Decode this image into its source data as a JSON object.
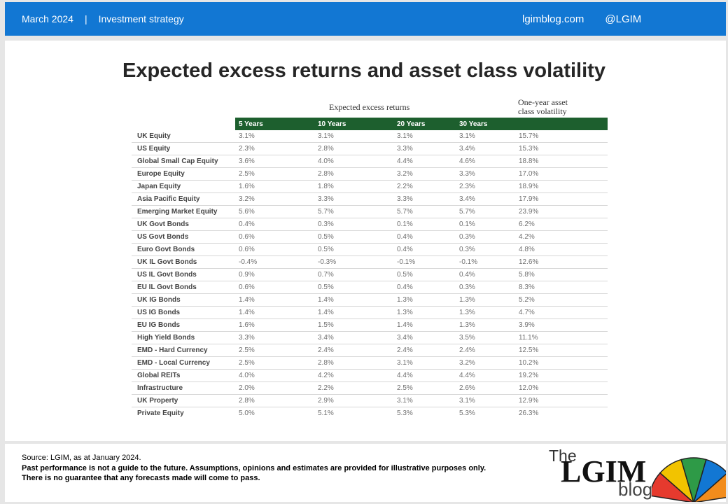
{
  "header": {
    "date": "March 2024",
    "separator": "|",
    "category": "Investment strategy",
    "site": "lgimblog.com",
    "handle": "@LGIM"
  },
  "title": "Expected excess returns and asset class volatility",
  "table": {
    "group_label": "Expected excess returns",
    "volatility_label_1": "One-year asset",
    "volatility_label_2": "class volatility",
    "columns": [
      "5 Years",
      "10 Years",
      "20 Years",
      "30 Years"
    ],
    "rows": [
      {
        "label": "UK Equity",
        "y5": "3.1%",
        "y10": "3.1%",
        "y20": "3.1%",
        "y30": "3.1%",
        "vol": "15.7%"
      },
      {
        "label": "US Equity",
        "y5": "2.3%",
        "y10": "2.8%",
        "y20": "3.3%",
        "y30": "3.4%",
        "vol": "15.3%"
      },
      {
        "label": "Global Small Cap Equity",
        "y5": "3.6%",
        "y10": "4.0%",
        "y20": "4.4%",
        "y30": "4.6%",
        "vol": "18.8%"
      },
      {
        "label": "Europe Equity",
        "y5": "2.5%",
        "y10": "2.8%",
        "y20": "3.2%",
        "y30": "3.3%",
        "vol": "17.0%"
      },
      {
        "label": "Japan Equity",
        "y5": "1.6%",
        "y10": "1.8%",
        "y20": "2.2%",
        "y30": "2.3%",
        "vol": "18.9%"
      },
      {
        "label": "Asia Pacific Equity",
        "y5": "3.2%",
        "y10": "3.3%",
        "y20": "3.3%",
        "y30": "3.4%",
        "vol": "17.9%"
      },
      {
        "label": "Emerging Market Equity",
        "y5": "5.6%",
        "y10": "5.7%",
        "y20": "5.7%",
        "y30": "5.7%",
        "vol": "23.9%"
      },
      {
        "label": "UK Govt Bonds",
        "y5": "0.4%",
        "y10": "0.3%",
        "y20": "0.1%",
        "y30": "0.1%",
        "vol": "6.2%"
      },
      {
        "label": "US Govt Bonds",
        "y5": "0.6%",
        "y10": "0.5%",
        "y20": "0.4%",
        "y30": "0.3%",
        "vol": "4.2%"
      },
      {
        "label": "Euro Govt Bonds",
        "y5": "0.6%",
        "y10": "0.5%",
        "y20": "0.4%",
        "y30": "0.3%",
        "vol": "4.8%"
      },
      {
        "label": "UK IL Govt Bonds",
        "y5": "-0.4%",
        "y10": "-0.3%",
        "y20": "-0.1%",
        "y30": "-0.1%",
        "vol": "12.6%"
      },
      {
        "label": "US IL Govt Bonds",
        "y5": "0.9%",
        "y10": "0.7%",
        "y20": "0.5%",
        "y30": "0.4%",
        "vol": "5.8%"
      },
      {
        "label": "EU IL Govt Bonds",
        "y5": "0.6%",
        "y10": "0.5%",
        "y20": "0.4%",
        "y30": "0.3%",
        "vol": "8.3%"
      },
      {
        "label": "UK IG Bonds",
        "y5": "1.4%",
        "y10": "1.4%",
        "y20": "1.3%",
        "y30": "1.3%",
        "vol": "5.2%"
      },
      {
        "label": "US IG Bonds",
        "y5": "1.4%",
        "y10": "1.4%",
        "y20": "1.3%",
        "y30": "1.3%",
        "vol": "4.7%"
      },
      {
        "label": "EU IG Bonds",
        "y5": "1.6%",
        "y10": "1.5%",
        "y20": "1.4%",
        "y30": "1.3%",
        "vol": "3.9%"
      },
      {
        "label": "High Yield Bonds",
        "y5": "3.3%",
        "y10": "3.4%",
        "y20": "3.4%",
        "y30": "3.5%",
        "vol": "11.1%"
      },
      {
        "label": "EMD - Hard Currency",
        "y5": "2.5%",
        "y10": "2.4%",
        "y20": "2.4%",
        "y30": "2.4%",
        "vol": "12.5%"
      },
      {
        "label": "EMD - Local Currency",
        "y5": "2.5%",
        "y10": "2.8%",
        "y20": "3.1%",
        "y30": "3.2%",
        "vol": "10.2%"
      },
      {
        "label": "Global REITs",
        "y5": "4.0%",
        "y10": "4.2%",
        "y20": "4.4%",
        "y30": "4.4%",
        "vol": "19.2%"
      },
      {
        "label": "Infrastructure",
        "y5": "2.0%",
        "y10": "2.2%",
        "y20": "2.5%",
        "y30": "2.6%",
        "vol": "12.0%"
      },
      {
        "label": "UK Property",
        "y5": "2.8%",
        "y10": "2.9%",
        "y20": "3.1%",
        "y30": "3.1%",
        "vol": "12.9%"
      },
      {
        "label": "Private Equity",
        "y5": "5.0%",
        "y10": "5.1%",
        "y20": "5.3%",
        "y30": "5.3%",
        "vol": "26.3%"
      }
    ]
  },
  "footer": {
    "source": "Source: LGIM,  as at January 2024.",
    "disclaimer_1": "Past performance is not a guide to the future. Assumptions, opinions and estimates are provided  for illustrative purposes only.",
    "disclaimer_2": "There is no guarantee that any forecasts made will come to pass."
  },
  "logo": {
    "the": "The",
    "lgim": "LGIM",
    "blog": "blog",
    "umbrella_colors": [
      "#e63a2e",
      "#f2c300",
      "#2e9a47",
      "#1277d3",
      "#f28c1c"
    ]
  },
  "colors": {
    "header_bg": "#1277d3",
    "table_header_bg": "#1d5f2e"
  }
}
